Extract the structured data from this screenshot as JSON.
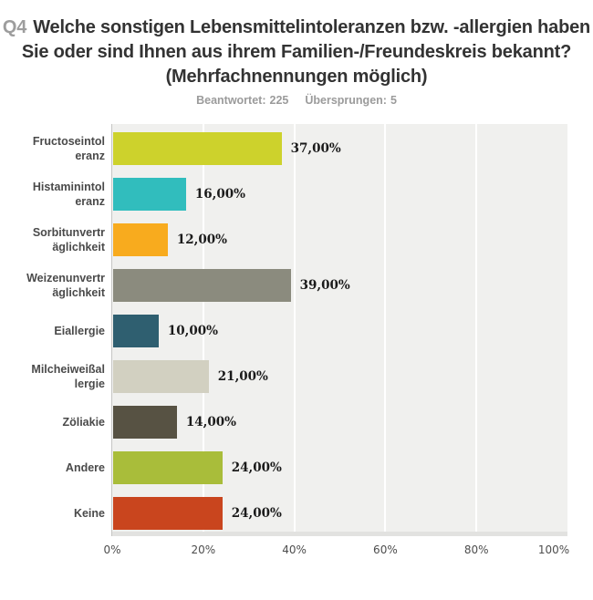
{
  "header": {
    "question_number": "Q4",
    "title_line1": "Welche sonstigen Lebensmittelintoleranzen bzw. -allergien haben",
    "title_line2": "Sie oder sind Ihnen aus ihrem Familien-/Freundeskreis bekannt?",
    "title_line3": "(Mehrfachnennungen möglich)",
    "answered_label": "Beantwortet:",
    "answered_value": "225",
    "skipped_label": "Übersprungen:",
    "skipped_value": "5"
  },
  "chart_data": {
    "type": "bar",
    "orientation": "horizontal",
    "title": "Q4 Welche sonstigen Lebensmittelintoleranzen bzw. -allergien haben Sie oder sind Ihnen aus ihrem Familien-/Freundeskreis bekannt? (Mehrfachnennungen möglich)",
    "categories": [
      "Fructoseintoleranz",
      "Histaminintoleranz",
      "Sorbitunverträglichkeit",
      "Weizenunverträglichkeit",
      "Eiallergie",
      "Milcheiweißallergie",
      "Zöliakie",
      "Andere",
      "Keine"
    ],
    "category_label_lines": [
      [
        "Fructoseintol",
        "eranz"
      ],
      [
        "Histaminintol",
        "eranz"
      ],
      [
        "Sorbitunvertr",
        "äglichkeit"
      ],
      [
        "Weizenunvertr",
        "äglichkeit"
      ],
      [
        "Eiallergie"
      ],
      [
        "Milcheiweißal",
        "lergie"
      ],
      [
        "Zöliakie"
      ],
      [
        "Andere"
      ],
      [
        "Keine"
      ]
    ],
    "values": [
      37,
      16,
      12,
      39,
      10,
      21,
      14,
      24,
      24
    ],
    "value_labels": [
      "37,00%",
      "16,00%",
      "12,00%",
      "39,00%",
      "10,00%",
      "21,00%",
      "14,00%",
      "24,00%",
      "24,00%"
    ],
    "bar_colors": [
      "#cdd22c",
      "#31bdbd",
      "#f8ab1e",
      "#8b8b7e",
      "#2f5f70",
      "#d2d0c1",
      "#575243",
      "#a9bd3a",
      "#c9451e"
    ],
    "x_ticks": [
      "0%",
      "20%",
      "40%",
      "60%",
      "80%",
      "100%"
    ],
    "xlim": [
      0,
      100
    ],
    "grid": true,
    "legend": "none",
    "xlabel": "",
    "ylabel": ""
  },
  "colors": {
    "plot_bg": "#f0f0ee",
    "gridline": "#ffffff",
    "axis_line": "#c6c6c4",
    "axis_strip": "#e2e2e0",
    "title_text": "#333333",
    "question_number": "#9d9d9d",
    "stats_text": "#9b9b9b",
    "category_label": "#4a4a4a",
    "value_label": "#1a1a1a",
    "tick_label": "#4d4d4d"
  }
}
